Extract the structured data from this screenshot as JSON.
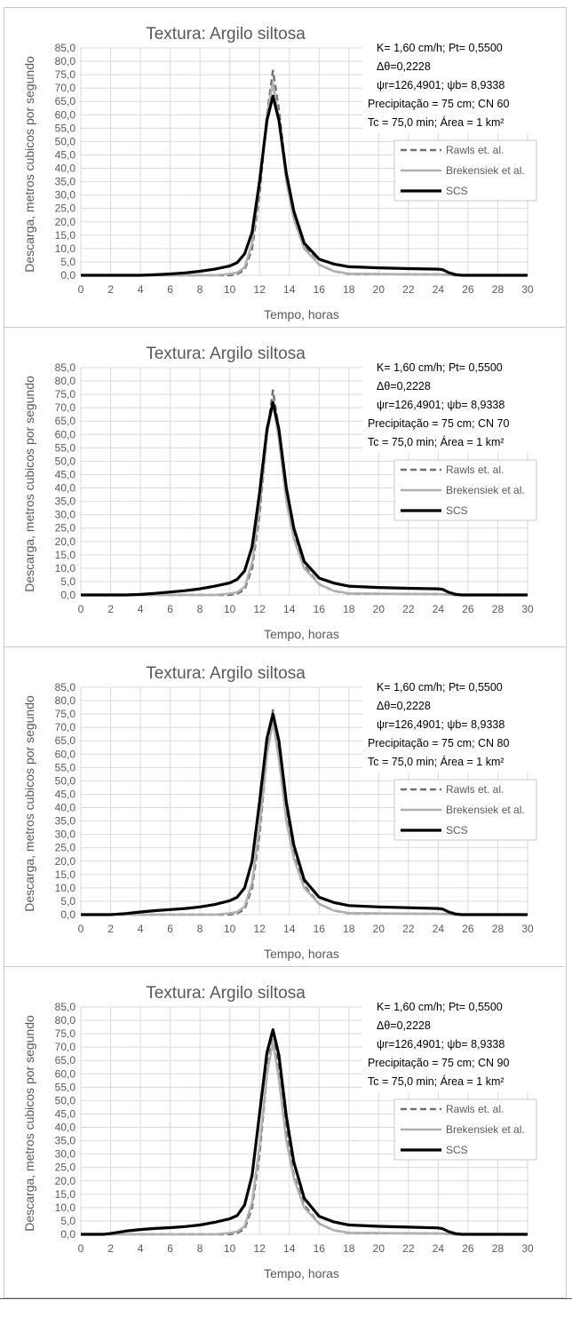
{
  "chart_data": [
    {
      "type": "line",
      "title": "Textura: Argilo siltosa",
      "xlabel": "Tempo, horas",
      "ylabel": "Descarga, metros cubicos por segundo",
      "xlim": [
        0,
        30
      ],
      "ylim": [
        0,
        85
      ],
      "x_ticks": [
        "0",
        "2",
        "4",
        "6",
        "8",
        "10",
        "12",
        "14",
        "16",
        "18",
        "20",
        "22",
        "24",
        "26",
        "28",
        "30"
      ],
      "y_ticks": [
        "0,0",
        "5,0",
        "10,0",
        "15,0",
        "20,0",
        "25,0",
        "30,0",
        "35,0",
        "40,0",
        "45,0",
        "50,0",
        "55,0",
        "60,0",
        "65,0",
        "70,0",
        "75,0",
        "80,0",
        "85,0"
      ],
      "grid": true,
      "legend_position": "right",
      "annotations": [
        "K= 1,60 cm/h; Pt= 0,5500",
        "Δθ=0,2228",
        "ψr=126,4901;  ψb= 8,9338",
        "Precipitação = 75  cm; CN 60",
        "Tc = 75,0  min; Área = 1 km²"
      ],
      "series": [
        {
          "name": "Rawls et. al.",
          "style": "dashed",
          "color": "#707070",
          "x": [
            0,
            10,
            10.5,
            11,
            11.5,
            12,
            12.5,
            12.9,
            13.3,
            13.8,
            14.3,
            15,
            16,
            17,
            18,
            24,
            24.5,
            25,
            25.5,
            30
          ],
          "y": [
            0,
            0,
            0.5,
            2,
            10,
            30,
            60,
            76.5,
            62,
            38,
            22,
            11,
            4,
            1.5,
            0.5,
            0.3,
            0.2,
            0,
            0,
            0
          ]
        },
        {
          "name": "Brekensiek et al.",
          "style": "solid",
          "color": "#b0b0b0",
          "x": [
            0,
            9,
            10,
            10.5,
            11,
            11.5,
            12,
            12.5,
            12.9,
            13.3,
            13.8,
            14.3,
            15,
            16,
            17,
            18,
            24,
            25,
            30
          ],
          "y": [
            0,
            0,
            0.5,
            1,
            3,
            12,
            33,
            60,
            72,
            58,
            35,
            21,
            10,
            4,
            1.5,
            0.6,
            0.3,
            0,
            0
          ]
        },
        {
          "name": "SCS",
          "style": "solid",
          "color": "#000000",
          "x": [
            0,
            4,
            5,
            6,
            7,
            8,
            9,
            10,
            10.5,
            11,
            11.5,
            12,
            12.5,
            12.9,
            13.3,
            13.8,
            14.3,
            15,
            16,
            17,
            18,
            20,
            22,
            24,
            24.3,
            24.7,
            25.2,
            25.6,
            30
          ],
          "y": [
            0,
            0,
            0.2,
            0.5,
            0.9,
            1.5,
            2.3,
            3.5,
            4.7,
            8,
            16,
            35,
            58,
            67,
            58,
            38,
            24,
            12,
            6,
            4.2,
            3.2,
            2.8,
            2.5,
            2.3,
            2.1,
            1,
            0.2,
            0,
            0
          ]
        }
      ]
    },
    {
      "type": "line",
      "title": "Textura: Argilo siltosa",
      "xlabel": "Tempo, horas",
      "ylabel": "Descarga, metros cubicos por segundo",
      "xlim": [
        0,
        30
      ],
      "ylim": [
        0,
        85
      ],
      "x_ticks": [
        "0",
        "2",
        "4",
        "6",
        "8",
        "10",
        "12",
        "14",
        "16",
        "18",
        "20",
        "22",
        "24",
        "26",
        "28",
        "30"
      ],
      "y_ticks": [
        "0,0",
        "5,0",
        "10,0",
        "15,0",
        "20,0",
        "25,0",
        "30,0",
        "35,0",
        "40,0",
        "45,0",
        "50,0",
        "55,0",
        "60,0",
        "65,0",
        "70,0",
        "75,0",
        "80,0",
        "85,0"
      ],
      "grid": true,
      "legend_position": "right",
      "annotations": [
        "K= 1,60 cm/h; Pt= 0,5500",
        "Δθ=0,2228",
        "ψr=126,4901;  ψb= 8,9338",
        "Precipitação = 75  cm; CN 70",
        "Tc = 75,0  min; Área = 1 km²"
      ],
      "series": [
        {
          "name": "Rawls et. al.",
          "style": "dashed",
          "color": "#707070",
          "x": [
            0,
            10,
            10.5,
            11,
            11.5,
            12,
            12.5,
            12.9,
            13.3,
            13.8,
            14.3,
            15,
            16,
            17,
            18,
            24,
            24.5,
            25,
            25.5,
            30
          ],
          "y": [
            0,
            0,
            0.5,
            2,
            10,
            30,
            60,
            76.5,
            62,
            38,
            22,
            11,
            4,
            1.5,
            0.5,
            0.3,
            0.2,
            0,
            0,
            0
          ]
        },
        {
          "name": "Brekensiek et al.",
          "style": "solid",
          "color": "#b0b0b0",
          "x": [
            0,
            9,
            10,
            10.5,
            11,
            11.5,
            12,
            12.5,
            12.9,
            13.3,
            13.8,
            14.3,
            15,
            16,
            17,
            18,
            24,
            25,
            30
          ],
          "y": [
            0,
            0,
            0.5,
            1,
            3,
            12,
            33,
            60,
            72,
            58,
            35,
            21,
            10,
            4,
            1.5,
            0.6,
            0.3,
            0,
            0
          ]
        },
        {
          "name": "SCS",
          "style": "solid",
          "color": "#000000",
          "x": [
            0,
            3,
            4,
            5,
            6,
            7,
            8,
            9,
            10,
            10.5,
            11,
            11.5,
            12,
            12.5,
            12.9,
            13.3,
            13.8,
            14.3,
            15,
            16,
            17,
            18,
            20,
            22,
            24,
            24.3,
            24.7,
            25.2,
            25.6,
            30
          ],
          "y": [
            0,
            0,
            0.2,
            0.6,
            1.1,
            1.6,
            2.3,
            3.3,
            4.5,
            5.8,
            9,
            18,
            38,
            62,
            72,
            62,
            40,
            25,
            12.5,
            6.3,
            4.4,
            3.3,
            2.8,
            2.5,
            2.3,
            2.1,
            1,
            0.2,
            0,
            0
          ]
        }
      ]
    },
    {
      "type": "line",
      "title": "Textura: Argilo siltosa",
      "xlabel": "Tempo, horas",
      "ylabel": "Descarga, metros cubicos por segundo",
      "xlim": [
        0,
        30
      ],
      "ylim": [
        0,
        85
      ],
      "x_ticks": [
        "0",
        "2",
        "4",
        "6",
        "8",
        "10",
        "12",
        "14",
        "16",
        "18",
        "20",
        "22",
        "24",
        "26",
        "28",
        "30"
      ],
      "y_ticks": [
        "0,0",
        "5,0",
        "10,0",
        "15,0",
        "20,0",
        "25,0",
        "30,0",
        "35,0",
        "40,0",
        "45,0",
        "50,0",
        "55,0",
        "60,0",
        "65,0",
        "70,0",
        "75,0",
        "80,0",
        "85,0"
      ],
      "grid": true,
      "legend_position": "right",
      "annotations": [
        "K= 1,60 cm/h; Pt= 0,5500",
        "Δθ=0,2228",
        "ψr=126,4901;  ψb= 8,9338",
        "Precipitação = 75  cm; CN 80",
        "Tc = 75,0  min; Área = 1 km²"
      ],
      "series": [
        {
          "name": "Rawls et. al.",
          "style": "dashed",
          "color": "#707070",
          "x": [
            0,
            10,
            10.5,
            11,
            11.5,
            12,
            12.5,
            12.9,
            13.3,
            13.8,
            14.3,
            15,
            16,
            17,
            18,
            24,
            24.5,
            25,
            25.5,
            30
          ],
          "y": [
            0,
            0,
            0.5,
            2,
            10,
            30,
            60,
            76.5,
            62,
            38,
            22,
            11,
            4,
            1.5,
            0.5,
            0.3,
            0.2,
            0,
            0,
            0
          ]
        },
        {
          "name": "Brekensiek et al.",
          "style": "solid",
          "color": "#b0b0b0",
          "x": [
            0,
            9,
            10,
            10.5,
            11,
            11.5,
            12,
            12.5,
            12.9,
            13.3,
            13.8,
            14.3,
            15,
            16,
            17,
            18,
            24,
            25,
            30
          ],
          "y": [
            0,
            0,
            0.5,
            1,
            3,
            12,
            33,
            60,
            72,
            58,
            35,
            21,
            10,
            4,
            1.5,
            0.6,
            0.3,
            0,
            0
          ]
        },
        {
          "name": "SCS",
          "style": "solid",
          "color": "#000000",
          "x": [
            0,
            2,
            3,
            4,
            5,
            6,
            7,
            8,
            9,
            10,
            10.5,
            11,
            11.5,
            12,
            12.5,
            12.9,
            13.3,
            13.8,
            14.3,
            15,
            16,
            17,
            18,
            20,
            22,
            24,
            24.3,
            24.7,
            25.2,
            25.6,
            30
          ],
          "y": [
            0,
            0,
            0.4,
            1,
            1.5,
            1.9,
            2.3,
            2.9,
            3.8,
            5.2,
            6.5,
            10,
            20,
            42,
            66,
            75,
            65,
            42,
            26,
            13,
            6.5,
            4.5,
            3.4,
            2.9,
            2.6,
            2.3,
            2.1,
            1,
            0.2,
            0,
            0
          ]
        }
      ]
    },
    {
      "type": "line",
      "title": "Textura: Argilo siltosa",
      "xlabel": "Tempo, horas",
      "ylabel": "Descarga, metros cubicos por segundo",
      "xlim": [
        0,
        30
      ],
      "ylim": [
        0,
        85
      ],
      "x_ticks": [
        "0",
        "2",
        "4",
        "6",
        "8",
        "10",
        "12",
        "14",
        "16",
        "18",
        "20",
        "22",
        "24",
        "26",
        "28",
        "30"
      ],
      "y_ticks": [
        "0,0",
        "5,0",
        "10,0",
        "15,0",
        "20,0",
        "25,0",
        "30,0",
        "35,0",
        "40,0",
        "45,0",
        "50,0",
        "55,0",
        "60,0",
        "65,0",
        "70,0",
        "75,0",
        "80,0",
        "85,0"
      ],
      "grid": true,
      "legend_position": "right",
      "annotations": [
        "K= 1,60 cm/h; Pt= 0,5500",
        "Δθ=0,2228",
        "ψr=126,4901;  ψb= 8,9338",
        "Precipitação = 75  cm; CN 90",
        "Tc = 75,0  min; Área = 1 km²"
      ],
      "series": [
        {
          "name": "Rawls et. al.",
          "style": "dashed",
          "color": "#707070",
          "x": [
            0,
            10,
            10.5,
            11,
            11.5,
            12,
            12.5,
            12.9,
            13.3,
            13.8,
            14.3,
            15,
            16,
            17,
            18,
            24,
            24.5,
            25,
            25.5,
            30
          ],
          "y": [
            0,
            0,
            0.5,
            2,
            10,
            30,
            60,
            76.5,
            62,
            38,
            22,
            11,
            4,
            1.5,
            0.5,
            0.3,
            0.2,
            0,
            0,
            0
          ]
        },
        {
          "name": "Brekensiek et al.",
          "style": "solid",
          "color": "#b0b0b0",
          "x": [
            0,
            9,
            10,
            10.5,
            11,
            11.5,
            12,
            12.5,
            12.9,
            13.3,
            13.8,
            14.3,
            15,
            16,
            17,
            18,
            24,
            25,
            30
          ],
          "y": [
            0,
            0,
            0.5,
            1,
            3,
            12,
            33,
            60,
            72,
            58,
            35,
            21,
            10,
            4,
            1.5,
            0.6,
            0.3,
            0,
            0
          ]
        },
        {
          "name": "SCS",
          "style": "solid",
          "color": "#000000",
          "x": [
            0,
            1.5,
            2,
            3,
            4,
            5,
            6,
            7,
            8,
            9,
            10,
            10.5,
            11,
            11.5,
            12,
            12.5,
            12.9,
            13.3,
            13.8,
            14.3,
            15,
            16,
            17,
            18,
            20,
            22,
            24,
            24.3,
            24.7,
            25.2,
            25.6,
            30
          ],
          "y": [
            0,
            0,
            0.3,
            1.2,
            1.8,
            2.2,
            2.5,
            2.9,
            3.5,
            4.5,
            5.8,
            7,
            11,
            22,
            45,
            68,
            76.5,
            67,
            44,
            27,
            13.5,
            6.7,
            4.6,
            3.5,
            3,
            2.7,
            2.4,
            2.1,
            1,
            0.2,
            0,
            0
          ]
        }
      ]
    }
  ]
}
